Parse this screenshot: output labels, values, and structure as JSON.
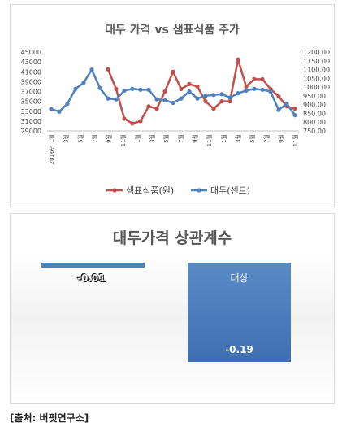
{
  "source": "[출처: 버핏연구소]",
  "chart_data": [
    {
      "type": "line",
      "title": "대두 가격 vs 샘표식품 주가",
      "x_tick_labels": [
        "2016년 1월",
        "3월",
        "5월",
        "7월",
        "9월",
        "11월",
        "1월",
        "3월",
        "5월",
        "7월",
        "9월",
        "11월",
        "1월",
        "3월",
        "5월",
        "7월",
        "9월",
        "11월"
      ],
      "axis_left": {
        "min": 29000,
        "max": 45000,
        "step": 2000
      },
      "axis_right": {
        "min": 750,
        "max": 1200,
        "step": 50
      },
      "legend_position": "bottom",
      "series": [
        {
          "name": "샘표식품(원)",
          "axis": "left",
          "color": "#c0504d",
          "values": [
            null,
            null,
            null,
            null,
            null,
            null,
            null,
            41500,
            37500,
            31500,
            30500,
            31000,
            34000,
            33500,
            37000,
            41000,
            37500,
            38500,
            38000,
            35000,
            33500,
            35000,
            35000,
            43500,
            38000,
            39500,
            39500,
            37500,
            36000,
            34000,
            33500
          ]
        },
        {
          "name": "대두(센트)",
          "axis": "right",
          "color": "#4f81bd",
          "values": [
            875,
            860,
            905,
            990,
            1025,
            1100,
            995,
            935,
            930,
            980,
            990,
            985,
            985,
            930,
            925,
            910,
            935,
            975,
            935,
            950,
            955,
            960,
            940,
            965,
            980,
            990,
            985,
            975,
            870,
            905,
            840
          ]
        }
      ]
    },
    {
      "type": "bar",
      "title": "대두가격 상관계수",
      "categories": [
        "",
        "대상"
      ],
      "values": [
        -0.01,
        -0.19
      ],
      "data_labels": [
        "-0.01",
        "-0.19"
      ],
      "ylim": [
        -0.2,
        0
      ],
      "colors": [
        "#4f81bd",
        "#4f81bd"
      ]
    }
  ]
}
